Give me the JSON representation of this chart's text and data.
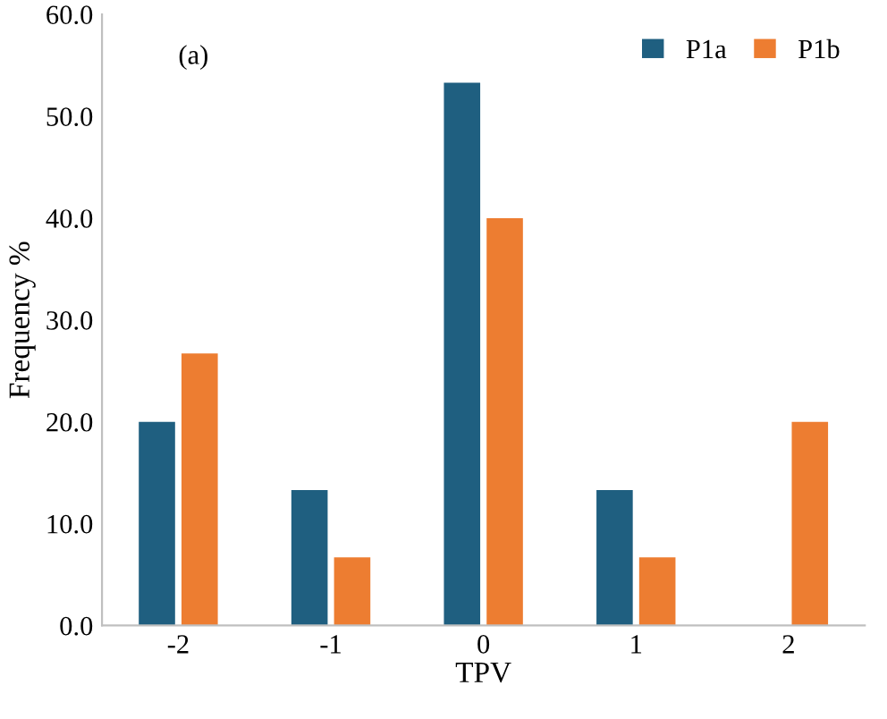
{
  "chart_data": {
    "type": "bar",
    "xlabel": "TPV",
    "ylabel": "Frequency %",
    "categories": [
      "-2",
      "-1",
      "0",
      "1",
      "2"
    ],
    "series": [
      {
        "name": "P1a",
        "color": "#1f5f80",
        "values": [
          20.0,
          13.3,
          53.3,
          13.3,
          0
        ]
      },
      {
        "name": "P1b",
        "color": "#ed7d31",
        "values": [
          26.7,
          6.7,
          40.0,
          6.7,
          20.0
        ]
      }
    ],
    "ylim": [
      0,
      60
    ],
    "yticks": [
      {
        "value": 0,
        "label": "0.0"
      },
      {
        "value": 10,
        "label": "10.0"
      },
      {
        "value": 20,
        "label": "20.0"
      },
      {
        "value": 30,
        "label": "30.0"
      },
      {
        "value": 40,
        "label": "40.0"
      },
      {
        "value": 50,
        "label": "50.0"
      },
      {
        "value": 60,
        "label": "60.0"
      }
    ],
    "grid": false,
    "legend": "top right",
    "annotations": [
      "(a)"
    ]
  }
}
